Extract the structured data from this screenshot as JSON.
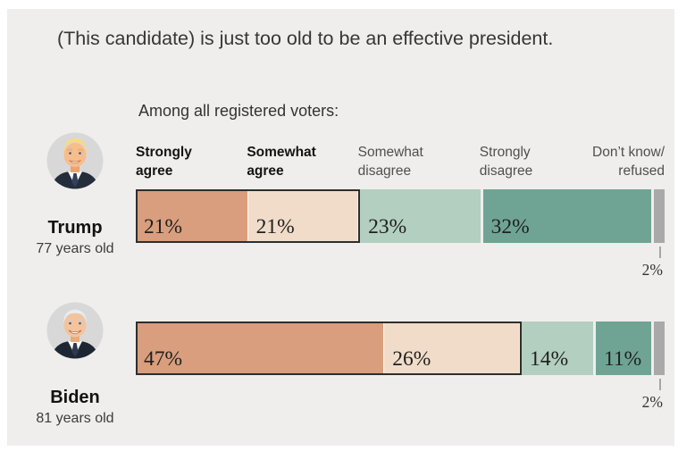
{
  "title": "(This candidate) is just too old to be an effective president.",
  "subtitle": "Among all registered voters:",
  "chart_data": {
    "type": "bar",
    "orientation": "horizontal-stacked",
    "unit": "percent of registered voters",
    "xlim": [
      0,
      100
    ],
    "grid": false,
    "legend_position": "column headers above first bar",
    "categories": [
      "Strongly agree",
      "Somewhat agree",
      "Somewhat disagree",
      "Strongly disagree",
      "Don’t know/refused"
    ],
    "segment_colors": [
      "#d89e7d",
      "#f0dcc8",
      "#b2cfc0",
      "#6fa494",
      "#a9a9a9"
    ],
    "agree_outline_color": "#2e2e2e",
    "background_color": "#efeeec",
    "column_headers": [
      {
        "line1": "Strongly",
        "line2": "agree",
        "emphasis": true
      },
      {
        "line1": "Somewhat",
        "line2": "agree",
        "emphasis": true
      },
      {
        "line1": "Somewhat",
        "line2": "disagree",
        "emphasis": false
      },
      {
        "line1": "Strongly",
        "line2": "disagree",
        "emphasis": false
      },
      {
        "line1": "Don’t know/",
        "line2": "refused",
        "emphasis": false
      }
    ],
    "rows": [
      {
        "name": "Trump",
        "age": "77 years old",
        "values": [
          21,
          21,
          23,
          32,
          2
        ],
        "segment_labels": [
          "21%",
          "21%",
          "23%",
          "32%"
        ],
        "dk_label": "2%"
      },
      {
        "name": "Biden",
        "age": "81 years old",
        "values": [
          47,
          26,
          14,
          11,
          2
        ],
        "segment_labels": [
          "47%",
          "26%",
          "14%",
          "11%"
        ],
        "dk_label": "2%"
      }
    ]
  }
}
